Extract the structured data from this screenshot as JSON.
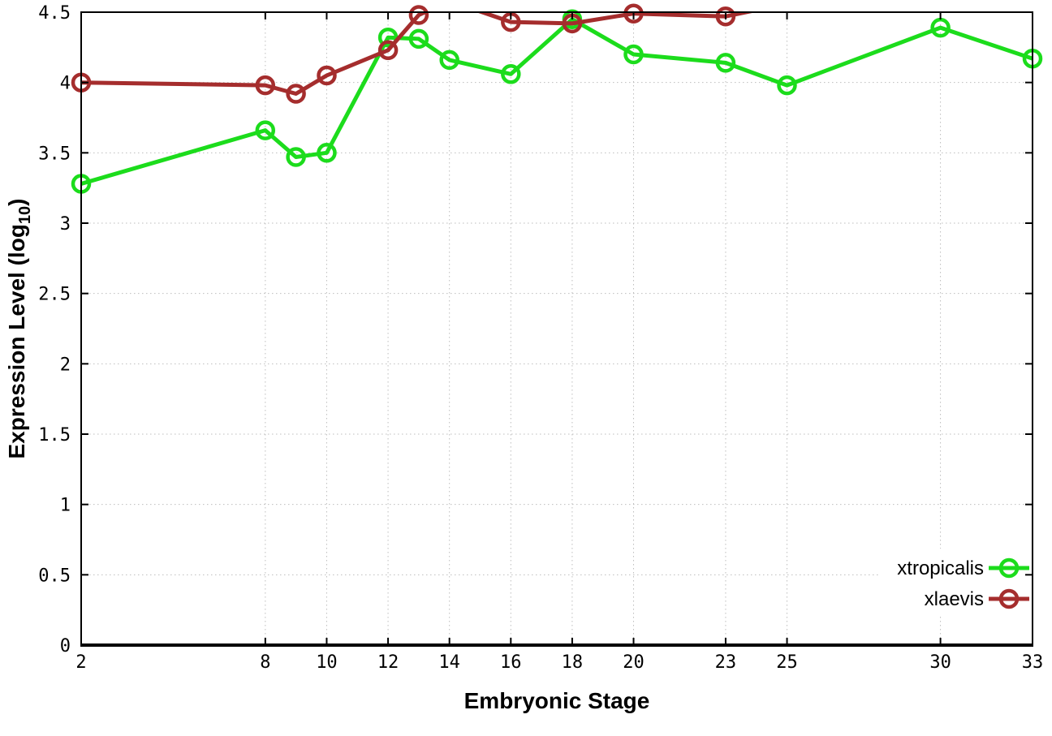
{
  "chart_data": {
    "type": "line",
    "title": "",
    "xlabel": "Embryonic Stage",
    "ylabel": "Expression Level (log10)",
    "ylabel_prefix": "Expression Level (log",
    "ylabel_sub": "10",
    "ylabel_suffix": ")",
    "xlim": [
      2,
      33
    ],
    "ylim": [
      0,
      4.5
    ],
    "xtick_values": [
      2,
      8,
      10,
      12,
      14,
      16,
      18,
      20,
      23,
      25,
      30,
      33
    ],
    "xtick_labels": [
      "2",
      "8",
      "10",
      "12",
      "14",
      "16",
      "18",
      "20",
      "23",
      "25",
      "30",
      "33"
    ],
    "ytick_values": [
      0,
      0.5,
      1,
      1.5,
      2,
      2.5,
      3,
      3.5,
      4,
      4.5
    ],
    "ytick_labels": [
      "0",
      "0.5",
      "1",
      "1.5",
      "2",
      "2.5",
      "3",
      "3.5",
      "4",
      "4.5"
    ],
    "grid": true,
    "legend_position": "bottom-right-inside",
    "series": [
      {
        "name": "xtropicalis",
        "color": "#1CDC1C",
        "x": [
          2,
          8,
          9,
          10,
          12,
          13,
          14,
          16,
          18,
          20,
          23,
          25,
          30,
          33
        ],
        "y": [
          3.28,
          3.66,
          3.47,
          3.5,
          4.32,
          4.31,
          4.16,
          4.06,
          4.45,
          4.2,
          4.14,
          3.98,
          4.39,
          4.17
        ]
      },
      {
        "name": "xlaevis",
        "color": "#A52D2D",
        "x": [
          2,
          8,
          9,
          10,
          12,
          13,
          14,
          16,
          18,
          20,
          23,
          25
        ],
        "y": [
          4.0,
          3.98,
          3.92,
          4.05,
          4.23,
          4.48,
          4.58,
          4.43,
          4.42,
          4.49,
          4.47,
          4.56
        ]
      }
    ]
  },
  "colors": {
    "background": "#ffffff",
    "grid": "#bdbdbd",
    "axis": "#000000",
    "text": "#000000"
  }
}
